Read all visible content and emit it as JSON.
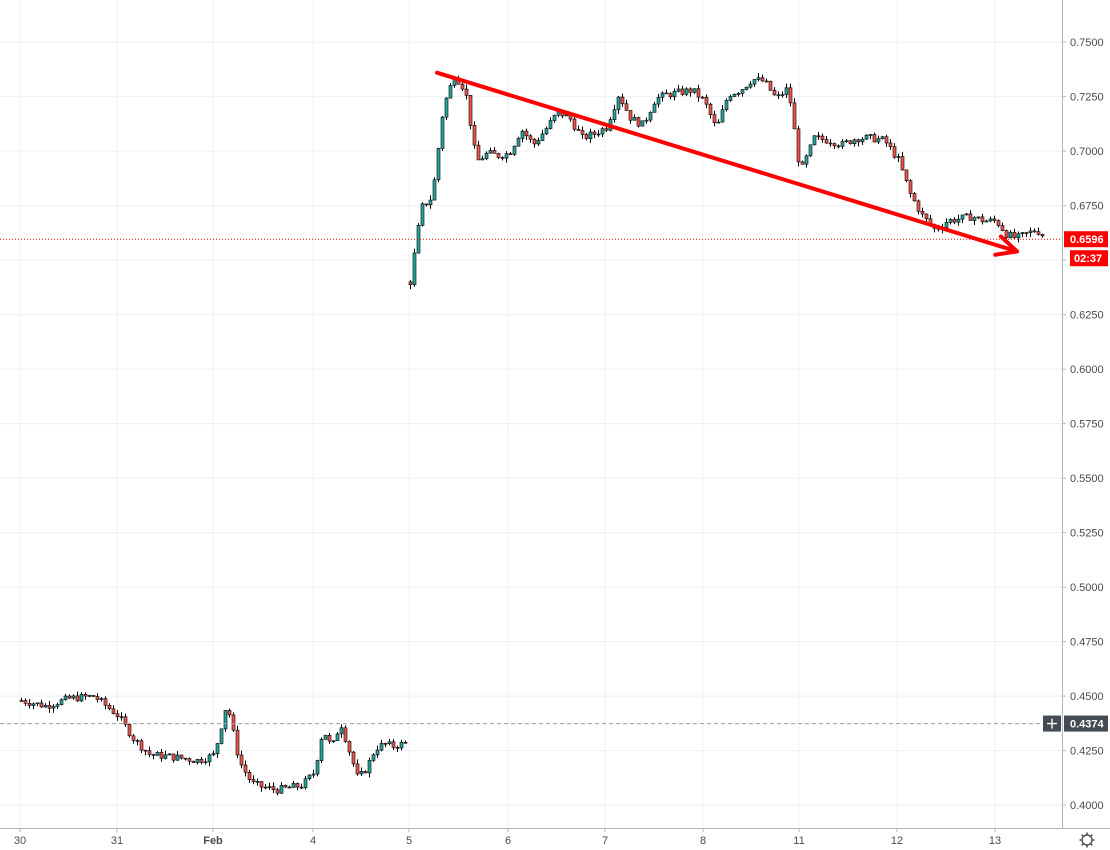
{
  "chart_data": {
    "type": "candlestick",
    "title": "",
    "xlabel": "",
    "ylabel": "",
    "ylim": [
      0.3895,
      0.7675
    ],
    "y_ticks": [
      0.4,
      0.425,
      0.45,
      0.475,
      0.5,
      0.525,
      0.55,
      0.575,
      0.6,
      0.625,
      0.65,
      0.675,
      0.7,
      0.725,
      0.75
    ],
    "x_tick_labels": [
      "30",
      "31",
      "Feb",
      "4",
      "5",
      "6",
      "7",
      "8",
      "11",
      "12",
      "13"
    ],
    "grid": true,
    "current_price": {
      "value": 0.6596,
      "label": "0.6596",
      "countdown": "02:37",
      "color": "#ff0000"
    },
    "reference_price": {
      "value": 0.4374,
      "label": "0.4374"
    },
    "colors": {
      "up": "#26a69a",
      "down": "#ef5350",
      "wick": "#000000",
      "grid": "#eef0f3",
      "annotation": "#ff0000",
      "axis_badge": "#444b55"
    },
    "segments": [
      {
        "start": "30",
        "end": "5",
        "path": [
          {
            "d": "30",
            "p": 0.448
          },
          {
            "d": "30",
            "p": 0.4455
          },
          {
            "d": "30",
            "p": 0.449
          },
          {
            "d": "30",
            "p": 0.45
          },
          {
            "d": "31",
            "p": 0.441
          },
          {
            "d": "31",
            "p": 0.43
          },
          {
            "d": "31",
            "p": 0.423
          },
          {
            "d": "31",
            "p": 0.4225
          },
          {
            "d": "31",
            "p": 0.4215
          },
          {
            "d": "31",
            "p": 0.4205
          },
          {
            "d": "Feb",
            "p": 0.423
          },
          {
            "d": "Feb",
            "p": 0.447
          },
          {
            "d": "Feb",
            "p": 0.42
          },
          {
            "d": "Feb",
            "p": 0.41
          },
          {
            "d": "Feb",
            "p": 0.408
          },
          {
            "d": "Feb",
            "p": 0.407
          },
          {
            "d": "Feb",
            "p": 0.408
          },
          {
            "d": "Feb",
            "p": 0.409
          },
          {
            "d": "4",
            "p": 0.415
          },
          {
            "d": "4",
            "p": 0.435
          },
          {
            "d": "4",
            "p": 0.426
          },
          {
            "d": "4",
            "p": 0.438
          },
          {
            "d": "4",
            "p": 0.425
          },
          {
            "d": "4",
            "p": 0.412
          },
          {
            "d": "4",
            "p": 0.417
          },
          {
            "d": "4",
            "p": 0.426
          },
          {
            "d": "4",
            "p": 0.428
          },
          {
            "d": "4",
            "p": 0.427
          },
          {
            "d": "4",
            "p": 0.428
          }
        ]
      },
      {
        "start": "5",
        "end": "13",
        "path": [
          {
            "d": "5",
            "p": 0.64
          },
          {
            "d": "5",
            "p": 0.674
          },
          {
            "d": "5",
            "p": 0.679
          },
          {
            "d": "5",
            "p": 0.72
          },
          {
            "d": "5",
            "p": 0.735
          },
          {
            "d": "5",
            "p": 0.728
          },
          {
            "d": "5",
            "p": 0.695
          },
          {
            "d": "5",
            "p": 0.699
          },
          {
            "d": "5",
            "p": 0.698
          },
          {
            "d": "6",
            "p": 0.699
          },
          {
            "d": "6",
            "p": 0.71
          },
          {
            "d": "6",
            "p": 0.703
          },
          {
            "d": "6",
            "p": 0.71
          },
          {
            "d": "6",
            "p": 0.718
          },
          {
            "d": "6",
            "p": 0.715
          },
          {
            "d": "6",
            "p": 0.706
          },
          {
            "d": "6",
            "p": 0.708
          },
          {
            "d": "7",
            "p": 0.711
          },
          {
            "d": "7",
            "p": 0.726
          },
          {
            "d": "7",
            "p": 0.715
          },
          {
            "d": "7",
            "p": 0.712
          },
          {
            "d": "7",
            "p": 0.724
          },
          {
            "d": "7",
            "p": 0.726
          },
          {
            "d": "7",
            "p": 0.727
          },
          {
            "d": "7",
            "p": 0.728
          },
          {
            "d": "8",
            "p": 0.723
          },
          {
            "d": "8",
            "p": 0.71
          },
          {
            "d": "8",
            "p": 0.726
          },
          {
            "d": "8",
            "p": 0.728
          },
          {
            "d": "8",
            "p": 0.733
          },
          {
            "d": "8",
            "p": 0.732
          },
          {
            "d": "8",
            "p": 0.724
          },
          {
            "d": "8",
            "p": 0.729
          },
          {
            "d": "11",
            "p": 0.69
          },
          {
            "d": "11",
            "p": 0.706
          },
          {
            "d": "11",
            "p": 0.705
          },
          {
            "d": "11",
            "p": 0.703
          },
          {
            "d": "11",
            "p": 0.706
          },
          {
            "d": "11",
            "p": 0.706
          },
          {
            "d": "11",
            "p": 0.705
          },
          {
            "d": "12",
            "p": 0.696
          },
          {
            "d": "12",
            "p": 0.68
          },
          {
            "d": "12",
            "p": 0.67
          },
          {
            "d": "12",
            "p": 0.664
          },
          {
            "d": "12",
            "p": 0.668
          },
          {
            "d": "12",
            "p": 0.669
          },
          {
            "d": "12",
            "p": 0.67
          },
          {
            "d": "12",
            "p": 0.668
          },
          {
            "d": "13",
            "p": 0.668
          },
          {
            "d": "13",
            "p": 0.662
          },
          {
            "d": "13",
            "p": 0.66
          },
          {
            "d": "13",
            "p": 0.662
          },
          {
            "d": "13",
            "p": 0.664
          },
          {
            "d": "13",
            "p": 0.66
          },
          {
            "d": "13",
            "p": 0.6596
          }
        ]
      }
    ],
    "arrow": {
      "from": {
        "d": "5",
        "p": 0.736
      },
      "to": {
        "d": "13",
        "p": 0.654
      },
      "color": "#ff0000"
    }
  }
}
